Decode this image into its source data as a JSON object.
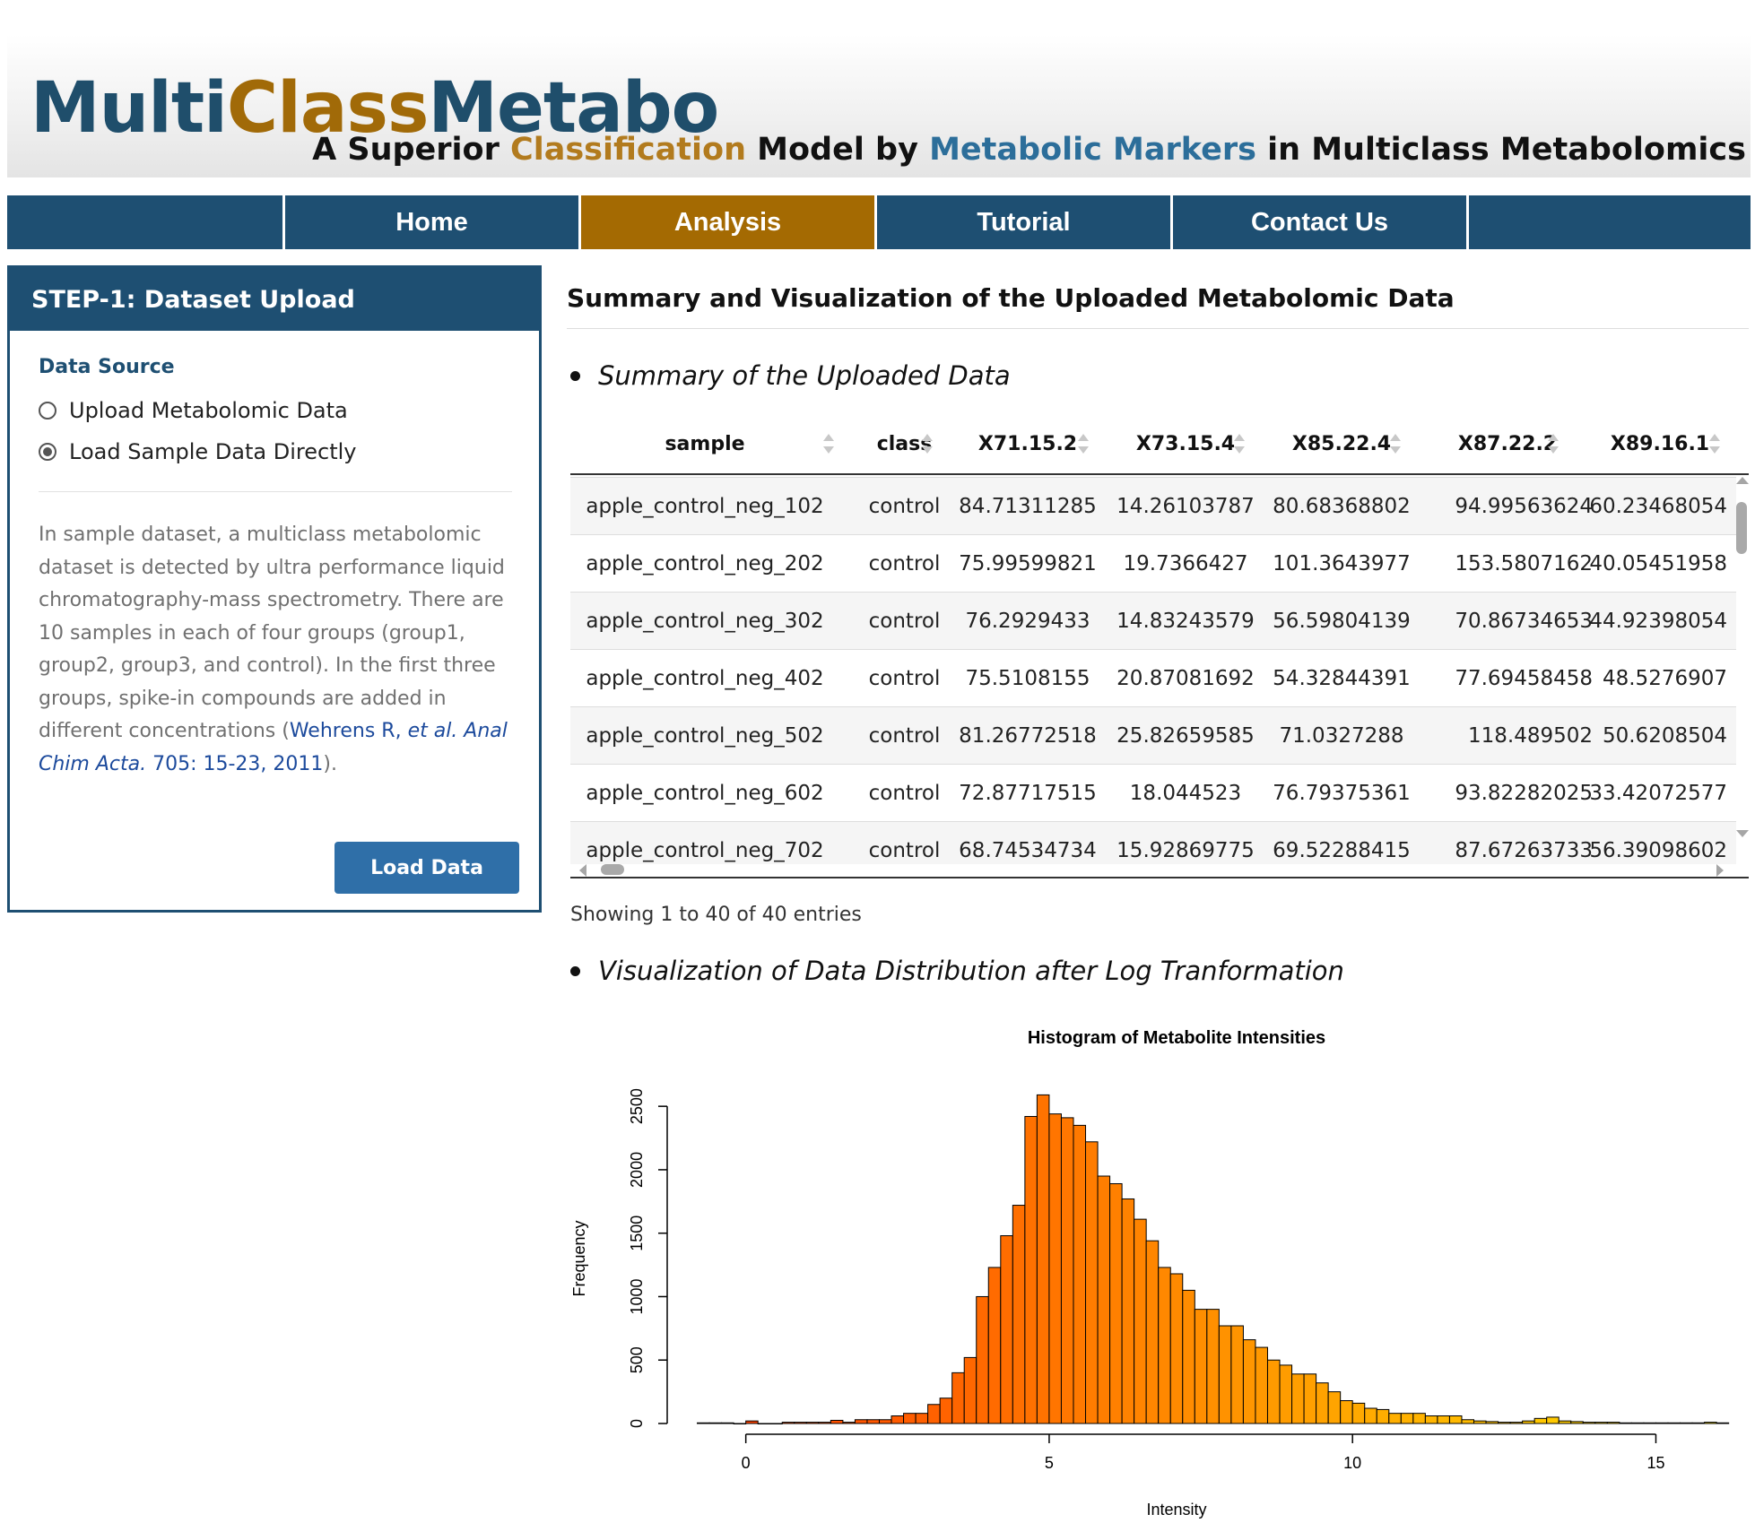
{
  "header": {
    "logo_parts": [
      "Multi",
      "Class",
      "Metabo"
    ],
    "tagline_parts": [
      "A Superior ",
      "Classification",
      " Model by ",
      "Metabolic Markers",
      " in Multiclass Metabolomics"
    ]
  },
  "nav": {
    "items": [
      "Home",
      "Analysis",
      "Tutorial",
      "Contact Us"
    ],
    "active": "Analysis"
  },
  "sidebar": {
    "title": "STEP-1: Dataset Upload",
    "data_source_label": "Data Source",
    "radio_options": [
      "Upload Metabolomic Data",
      "Load Sample Data Directly"
    ],
    "selected_option": "Load Sample Data Directly",
    "description_prefix": "In sample dataset, a multiclass metabolomic dataset is detected by ultra performance liquid chromatography-mass spectrometry. There are 10 samples in each of four groups (group1, group2, group3, and control). In the first three groups, spike-in compounds are added in different concentrations (",
    "citation_author": "Wehrens R, ",
    "citation_etal": "et al. Anal Chim Acta.",
    "citation_tail": " 705: 15-23, 2011",
    "description_suffix": ").",
    "load_button": "Load Data"
  },
  "main": {
    "title": "Summary and Visualization of the Uploaded Metabolomic Data",
    "summary_heading": "Summary of the Uploaded Data",
    "viz_heading": "Visualization of Data Distribution after Log Tranformation",
    "table_info": "Showing 1 to 40 of 40 entries"
  },
  "table": {
    "columns": [
      "sample",
      "class",
      "X71.15.2",
      "X73.15.4",
      "X85.22.4",
      "X87.22.2",
      "X89.16.1"
    ],
    "rows": [
      [
        "apple_control_neg_102",
        "control",
        "84.71311285",
        "14.26103787",
        "80.68368802",
        "94.99563624",
        "60.23468054"
      ],
      [
        "apple_control_neg_202",
        "control",
        "75.99599821",
        "19.7366427",
        "101.3643977",
        "153.5807162",
        "40.05451958"
      ],
      [
        "apple_control_neg_302",
        "control",
        "76.2929433",
        "14.83243579",
        "56.59804139",
        "70.86734653",
        "44.92398054"
      ],
      [
        "apple_control_neg_402",
        "control",
        "75.5108155",
        "20.87081692",
        "54.32844391",
        "77.69458458",
        "48.5276907"
      ],
      [
        "apple_control_neg_502",
        "control",
        "81.26772518",
        "25.82659585",
        "71.0327288",
        "118.489502",
        "50.6208504"
      ],
      [
        "apple_control_neg_602",
        "control",
        "72.87717515",
        "18.044523",
        "76.79375361",
        "93.82282025",
        "33.42072577"
      ],
      [
        "apple_control_neg_702",
        "control",
        "68.74534734",
        "15.92869775",
        "69.52288415",
        "87.67263733",
        "56.39098602"
      ]
    ]
  },
  "chart_data": {
    "type": "bar",
    "title": "Histogram of Metabolite Intensities",
    "xlabel": "Intensity",
    "ylabel": "Frequency",
    "xlim": [
      -1,
      15.2
    ],
    "ylim": [
      0,
      2600
    ],
    "x_ticks": [
      0,
      5,
      10,
      15
    ],
    "y_ticks": [
      0,
      500,
      1000,
      1500,
      2000,
      2500
    ],
    "bin_width": 0.2,
    "bin_start": -0.8,
    "values": [
      5,
      5,
      5,
      0,
      20,
      0,
      0,
      10,
      10,
      10,
      10,
      25,
      10,
      30,
      30,
      30,
      60,
      80,
      80,
      150,
      200,
      400,
      520,
      1000,
      1230,
      1480,
      1720,
      2420,
      2590,
      2440,
      2410,
      2350,
      2220,
      1950,
      1890,
      1770,
      1610,
      1440,
      1230,
      1180,
      1050,
      900,
      900,
      770,
      770,
      660,
      600,
      500,
      460,
      390,
      390,
      320,
      250,
      180,
      160,
      120,
      110,
      80,
      80,
      80,
      60,
      60,
      60,
      30,
      20,
      15,
      10,
      10,
      20,
      40,
      50,
      20,
      15,
      10,
      10,
      10,
      5,
      5,
      5,
      5,
      5,
      5,
      5,
      10,
      5
    ],
    "color_start": "#ff3a00",
    "color_end": "#ffe600"
  }
}
